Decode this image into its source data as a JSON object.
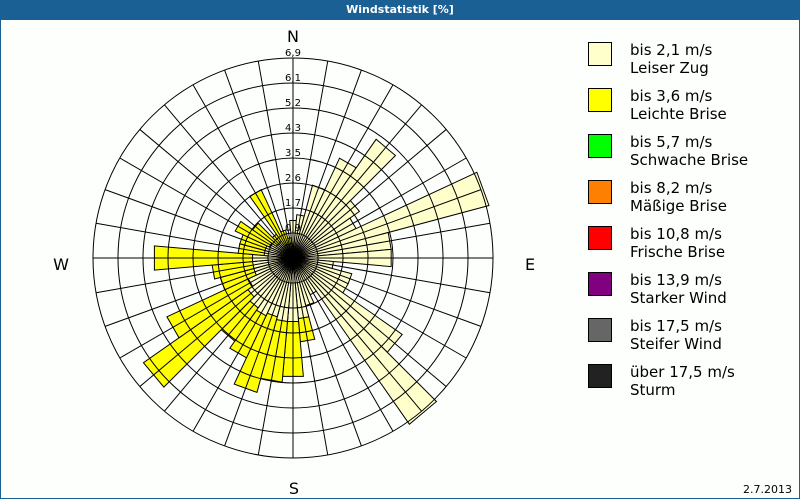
{
  "window": {
    "title": "Windstatistik [%]",
    "date": "2.7.2013"
  },
  "compass": {
    "n": "N",
    "e": "E",
    "s": "S",
    "w": "W"
  },
  "legend": [
    {
      "line1": "bis 2,1 m/s",
      "line2": "Leiser Zug",
      "color": "#ffffcc"
    },
    {
      "line1": "bis 3,6 m/s",
      "line2": "Leichte Brise",
      "color": "#ffff00"
    },
    {
      "line1": "bis 5,7 m/s",
      "line2": "Schwache Brise",
      "color": "#00ff00"
    },
    {
      "line1": "bis 8,2 m/s",
      "line2": "Mäßige Brise",
      "color": "#ff8000"
    },
    {
      "line1": "bis 10,8 m/s",
      "line2": "Frische Brise",
      "color": "#ff0000"
    },
    {
      "line1": "bis 13,9 m/s",
      "line2": "Starker Wind",
      "color": "#800080"
    },
    {
      "line1": "bis 17,5 m/s",
      "line2": "Steifer Wind",
      "color": "#666666"
    },
    {
      "line1": "über 17,5 m/s",
      "line2": "Sturm",
      "color": "#222222"
    }
  ],
  "chart_data": {
    "type": "wind-rose",
    "title": "Windstatistik [%]",
    "unit": "%",
    "ring_labels": [
      "0,9",
      "1,7",
      "2,6",
      "3,5",
      "4,3",
      "5,2",
      "6,1",
      "6,9"
    ],
    "rmax": 6.9,
    "sector_width_deg": 10,
    "directions_deg": [
      0,
      10,
      20,
      30,
      40,
      50,
      60,
      70,
      80,
      90,
      100,
      110,
      120,
      130,
      140,
      150,
      160,
      170,
      180,
      190,
      200,
      210,
      220,
      230,
      240,
      250,
      260,
      270,
      280,
      290,
      300,
      310,
      320,
      330,
      340,
      350
    ],
    "series": [
      {
        "name": "bis 2,1 m/s (Leiser Zug)",
        "color": "#ffffcc",
        "values": [
          1.3,
          1.5,
          2.6,
          3.8,
          5.0,
          2.8,
          2.4,
          7.0,
          3.4,
          3.4,
          1.4,
          2.1,
          2.1,
          4.6,
          7.0,
          1.4,
          1.7,
          2.1,
          2.2,
          2.2,
          2.1,
          2.2,
          2.1,
          1.9,
          1.7,
          1.4,
          1.4,
          1.4,
          1.0,
          1.0,
          0.9,
          0.7,
          0.7,
          0.5,
          0.5,
          0.5
        ]
      },
      {
        "name": "bis 3,6 m/s (Leichte Brise)",
        "color": "#ffff00",
        "values": [
          0,
          0,
          0,
          0,
          0,
          0,
          0,
          0,
          0,
          0,
          0,
          0,
          0,
          0,
          0,
          0,
          0,
          0.8,
          1.9,
          2.1,
          2.7,
          1.6,
          1.4,
          4.4,
          3.1,
          1.2,
          1.4,
          3.4,
          0.9,
          0.9,
          1.3,
          1.0,
          0.3,
          2.1,
          0.5,
          0.2
        ]
      },
      {
        "name": "bis 5,7 m/s (Schwache Brise)",
        "color": "#00ff00",
        "values": []
      },
      {
        "name": "bis 8,2 m/s (Mäßige Brise)",
        "color": "#ff8000",
        "values": []
      },
      {
        "name": "bis 10,8 m/s (Frische Brise)",
        "color": "#ff0000",
        "values": []
      },
      {
        "name": "bis 13,9 m/s (Starker Wind)",
        "color": "#800080",
        "values": []
      },
      {
        "name": "bis 17,5 m/s (Steifer Wind)",
        "color": "#666666",
        "values": []
      },
      {
        "name": "über 17,5 m/s (Sturm)",
        "color": "#222222",
        "values": []
      }
    ],
    "legend_position": "right",
    "grid": true
  }
}
